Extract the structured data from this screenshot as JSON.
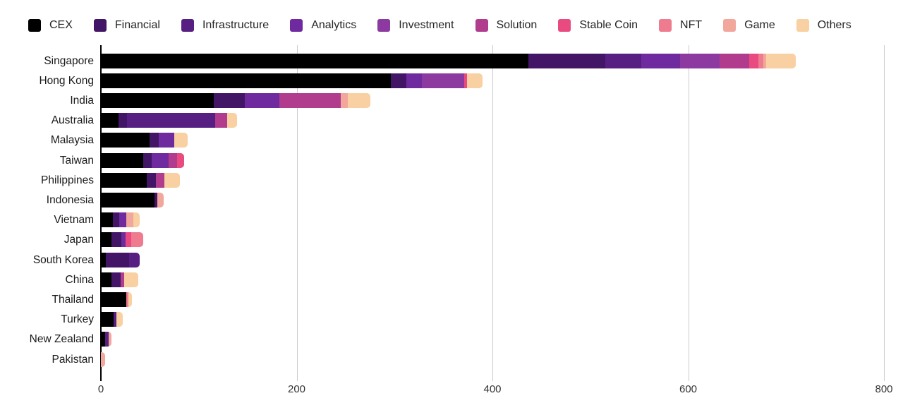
{
  "chart_data": {
    "type": "bar",
    "orientation": "horizontal",
    "stacked": true,
    "title": "",
    "xlabel": "",
    "ylabel": "",
    "xlim": [
      0,
      800
    ],
    "x_ticks": [
      0,
      200,
      400,
      600,
      800
    ],
    "x_tick_labels": [
      "0",
      "200",
      "400",
      "600",
      "800"
    ],
    "grid": true,
    "legend_position": "top",
    "categories": [
      "Singapore",
      "Hong Kong",
      "India",
      "Australia",
      "Malaysia",
      "Taiwan",
      "Philippines",
      "Indonesia",
      "Vietnam",
      "Japan",
      "South Korea",
      "China",
      "Thailand",
      "Turkey",
      "New Zealand",
      "Pakistan"
    ],
    "series": [
      {
        "name": "CEX",
        "color": "#000000",
        "values": [
          437,
          296,
          115,
          18,
          50,
          43,
          47,
          55,
          12,
          11,
          5,
          11,
          26,
          13,
          4,
          0
        ]
      },
      {
        "name": "Financial",
        "color": "#421566",
        "values": [
          78,
          16,
          32,
          9,
          9,
          9,
          9,
          3,
          7,
          10,
          24,
          9,
          0,
          0,
          0,
          0
        ]
      },
      {
        "name": "Infrastructure",
        "color": "#581f82",
        "values": [
          37,
          0,
          0,
          90,
          0,
          0,
          0,
          0,
          0,
          0,
          11,
          0,
          0,
          3,
          4,
          0
        ]
      },
      {
        "name": "Analytics",
        "color": "#6f2a9f",
        "values": [
          40,
          16,
          35,
          0,
          16,
          17,
          0,
          0,
          7,
          4,
          0,
          0,
          0,
          0,
          0,
          0
        ]
      },
      {
        "name": "Investment",
        "color": "#8c3aa0",
        "values": [
          40,
          43,
          0,
          0,
          0,
          0,
          0,
          0,
          0,
          0,
          0,
          0,
          0,
          0,
          0,
          0
        ]
      },
      {
        "name": "Solution",
        "color": "#b13b8d",
        "values": [
          30,
          0,
          63,
          12,
          0,
          9,
          9,
          0,
          0,
          0,
          0,
          4,
          0,
          0,
          0,
          0
        ]
      },
      {
        "name": "Stable Coin",
        "color": "#e94a80",
        "values": [
          10,
          3,
          0,
          0,
          0,
          7,
          0,
          0,
          0,
          6,
          0,
          0,
          0,
          0,
          0,
          0
        ]
      },
      {
        "name": "NFT",
        "color": "#ee7b8e",
        "values": [
          5,
          0,
          0,
          0,
          0,
          0,
          0,
          0,
          0,
          12,
          0,
          0,
          2,
          0,
          0,
          0
        ]
      },
      {
        "name": "Game",
        "color": "#f1a79b",
        "values": [
          3,
          0,
          7,
          0,
          0,
          0,
          0,
          6,
          7,
          0,
          0,
          0,
          0,
          0,
          3,
          4
        ]
      },
      {
        "name": "Others",
        "color": "#f8d0a2",
        "values": [
          30,
          16,
          23,
          10,
          14,
          0,
          16,
          0,
          7,
          0,
          0,
          14,
          4,
          6,
          0,
          0
        ]
      }
    ]
  }
}
